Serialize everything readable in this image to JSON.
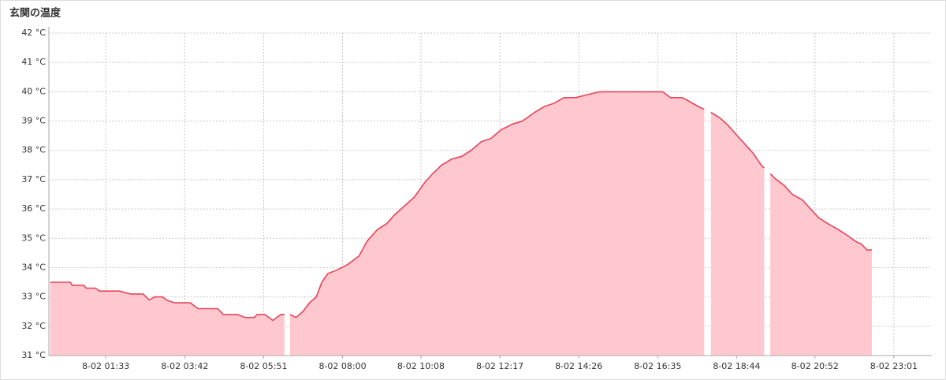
{
  "chart_data": {
    "type": "line",
    "title": "玄関の温度",
    "x": [
      2,
      35,
      38,
      57,
      61,
      76,
      83,
      115,
      134,
      154,
      164,
      173,
      186,
      192,
      205,
      231,
      244,
      276,
      285,
      308,
      321,
      336,
      340,
      353,
      366,
      379,
      385,
      389,
      394,
      404,
      415,
      426,
      437,
      446,
      456,
      469,
      488,
      507,
      520,
      537,
      552,
      565,
      581,
      597,
      614,
      627,
      642,
      658,
      675,
      690,
      707,
      722,
      739,
      758,
      774,
      794,
      810,
      825,
      842,
      861,
      880,
      900,
      925,
      951,
      977,
      1003,
      1016,
      1035,
      1044,
      1061,
      1071,
      1076,
      1082,
      1097,
      1108,
      1125,
      1138,
      1151,
      1164,
      1169,
      1174,
      1179,
      1189,
      1202,
      1215,
      1232,
      1245,
      1258,
      1273,
      1290,
      1305,
      1318,
      1328,
      1337,
      1345
    ],
    "series": [
      {
        "color": "#e8435a",
        "fill": "#ffc7ce",
        "values": [
          33.5,
          33.5,
          33.4,
          33.4,
          33.3,
          33.3,
          33.2,
          33.2,
          33.1,
          33.1,
          32.9,
          33.0,
          33.0,
          32.9,
          32.8,
          32.8,
          32.6,
          32.6,
          32.4,
          32.4,
          32.3,
          32.3,
          32.4,
          32.4,
          32.2,
          32.4,
          32.4,
          null,
          32.4,
          32.3,
          32.5,
          32.8,
          33.0,
          33.5,
          33.8,
          33.9,
          34.1,
          34.4,
          34.9,
          35.3,
          35.5,
          35.8,
          36.1,
          36.4,
          36.9,
          37.2,
          37.5,
          37.7,
          37.8,
          38.0,
          38.3,
          38.4,
          38.7,
          38.9,
          39.0,
          39.3,
          39.5,
          39.6,
          39.8,
          39.8,
          39.9,
          40.0,
          40.0,
          40.0,
          40.0,
          40.0,
          39.8,
          39.8,
          39.7,
          39.5,
          39.4,
          null,
          39.3,
          39.1,
          38.9,
          38.5,
          38.2,
          37.9,
          37.5,
          37.4,
          null,
          37.2,
          37.0,
          36.8,
          36.5,
          36.3,
          36.0,
          35.7,
          35.5,
          35.3,
          35.1,
          34.9,
          34.8,
          34.6,
          34.6
        ]
      }
    ],
    "xlim": [
      0,
      1443
    ],
    "xticks": [
      {
        "value": 93,
        "label": "8-02 01:33"
      },
      {
        "value": 222,
        "label": "8-02 03:42"
      },
      {
        "value": 351,
        "label": "8-02 05:51"
      },
      {
        "value": 480,
        "label": "8-02 08:00"
      },
      {
        "value": 608,
        "label": "8-02 10:08"
      },
      {
        "value": 737,
        "label": "8-02 12:17"
      },
      {
        "value": 866,
        "label": "8-02 14:26"
      },
      {
        "value": 995,
        "label": "8-02 16:35"
      },
      {
        "value": 1124,
        "label": "8-02 18:44"
      },
      {
        "value": 1252,
        "label": "8-02 20:52"
      },
      {
        "value": 1381,
        "label": "8-02 23:01"
      }
    ],
    "ylim": [
      31,
      42
    ],
    "yticks": [
      {
        "value": 31,
        "label": "31 °C"
      },
      {
        "value": 32,
        "label": "32 °C"
      },
      {
        "value": 33,
        "label": "33 °C"
      },
      {
        "value": 34,
        "label": "34 °C"
      },
      {
        "value": 35,
        "label": "35 °C"
      },
      {
        "value": 36,
        "label": "36 °C"
      },
      {
        "value": 37,
        "label": "37 °C"
      },
      {
        "value": 38,
        "label": "38 °C"
      },
      {
        "value": 39,
        "label": "39 °C"
      },
      {
        "value": 40,
        "label": "40 °C"
      },
      {
        "value": 41,
        "label": "41 °C"
      },
      {
        "value": 42,
        "label": "42 °C"
      }
    ],
    "grid": true
  }
}
